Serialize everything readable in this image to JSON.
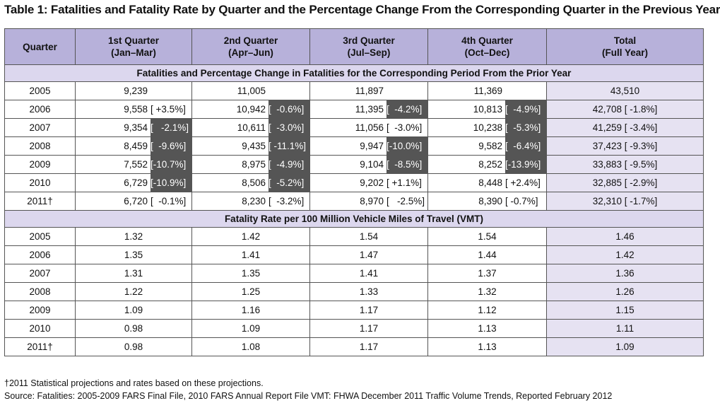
{
  "title": "Table 1: Fatalities and Fatality Rate by Quarter and the Percentage Change From the Corresponding Quarter in the Previous Year",
  "headers": [
    {
      "line1": "Quarter",
      "line2": ""
    },
    {
      "line1": "1st Quarter",
      "line2": "(Jan–Mar)"
    },
    {
      "line1": "2nd Quarter",
      "line2": "(Apr–Jun)"
    },
    {
      "line1": "3rd Quarter",
      "line2": "(Jul–Sep)"
    },
    {
      "line1": "4th Quarter",
      "line2": "(Oct–Dec)"
    },
    {
      "line1": "Total",
      "line2": "(Full Year)"
    }
  ],
  "section1_title": "Fatalities and Percentage Change in Fatalities for the Corresponding Period From the Prior Year",
  "fatalities": [
    {
      "year": "2005",
      "q": [
        [
          "9,239",
          ""
        ],
        [
          "11,005",
          ""
        ],
        [
          "11,897",
          ""
        ],
        [
          "11,369",
          ""
        ]
      ],
      "dark": [
        false,
        false,
        false,
        false
      ],
      "total": "43,510"
    },
    {
      "year": "2006",
      "q": [
        [
          "9,558",
          "[ +3.5%]"
        ],
        [
          "10,942",
          "[  -0.6%]"
        ],
        [
          "11,395",
          "[  -4.2%]"
        ],
        [
          "10,813",
          "[  -4.9%]"
        ]
      ],
      "dark": [
        false,
        true,
        true,
        true
      ],
      "total": "42,708 [  -1.8%]"
    },
    {
      "year": "2007",
      "q": [
        [
          "9,354",
          "[   -2.1%]"
        ],
        [
          "10,611",
          "[  -3.0%]"
        ],
        [
          "11,056",
          "[  -3.0%]"
        ],
        [
          "10,238",
          "[  -5.3%]"
        ]
      ],
      "dark": [
        true,
        true,
        false,
        true
      ],
      "total": "41,259 [ -3.4%]"
    },
    {
      "year": "2008",
      "q": [
        [
          "8,459",
          "[  -9.6%]"
        ],
        [
          "9,435",
          "[ -11.1%]"
        ],
        [
          "9,947",
          "[-10.0%]"
        ],
        [
          "9,582",
          "[  -6.4%]"
        ]
      ],
      "dark": [
        true,
        true,
        true,
        true
      ],
      "total": "37,423 [ -9.3%]"
    },
    {
      "year": "2009",
      "q": [
        [
          "7,552",
          "[-10.7%]"
        ],
        [
          "8,975",
          "[  -4.9%]"
        ],
        [
          "9,104",
          "[  -8.5%]"
        ],
        [
          "8,252",
          "[-13.9%]"
        ]
      ],
      "dark": [
        true,
        true,
        true,
        true
      ],
      "total": "33,883 [ -9.5%]"
    },
    {
      "year": "2010",
      "q": [
        [
          "6,729",
          "[-10.9%]"
        ],
        [
          "8,506",
          "[  -5.2%]"
        ],
        [
          "9,202",
          "[ +1.1%]"
        ],
        [
          "8,448",
          "[ +2.4%]"
        ]
      ],
      "dark": [
        true,
        true,
        false,
        false
      ],
      "total": "32,885 [ -2.9%]"
    },
    {
      "year": "2011†",
      "q": [
        [
          "6,720",
          "[  -0.1%]"
        ],
        [
          "8,230",
          "[  -3.2%]"
        ],
        [
          "8,970",
          "[   -2.5%]"
        ],
        [
          "8,390",
          "[ -0.7%]"
        ]
      ],
      "dark": [
        false,
        false,
        false,
        false
      ],
      "total": "32,310 [ -1.7%]"
    }
  ],
  "section2_title": "Fatality Rate per 100 Million Vehicle Miles of Travel (VMT)",
  "rates": [
    {
      "year": "2005",
      "q": [
        "1.32",
        "1.42",
        "1.54",
        "1.54"
      ],
      "total": "1.46"
    },
    {
      "year": "2006",
      "q": [
        "1.35",
        "1.41",
        "1.47",
        "1.44"
      ],
      "total": "1.42"
    },
    {
      "year": "2007",
      "q": [
        "1.31",
        "1.35",
        "1.41",
        "1.37"
      ],
      "total": "1.36"
    },
    {
      "year": "2008",
      "q": [
        "1.22",
        "1.25",
        "1.33",
        "1.32"
      ],
      "total": "1.26"
    },
    {
      "year": "2009",
      "q": [
        "1.09",
        "1.16",
        "1.17",
        "1.12"
      ],
      "total": "1.15"
    },
    {
      "year": "2010",
      "q": [
        "0.98",
        "1.09",
        "1.17",
        "1.13"
      ],
      "total": "1.11"
    },
    {
      "year": "2011†",
      "q": [
        "0.98",
        "1.08",
        "1.17",
        "1.13"
      ],
      "total": "1.09"
    }
  ],
  "footnote": "†2011 Statistical projections and rates based on these projections.",
  "source_left": "Source: Fatalities: 2005-2009 FARS Final File, 2010 FARS Annual Report File",
  "source_right": "VMT: FHWA December 2011 Traffic Volume Trends, Reported February 2012",
  "colors": {
    "header_bg": "#b7b1da",
    "section_bg": "#dcd7ee",
    "total_bg": "#e6e2f2",
    "highlight": "#555555"
  }
}
